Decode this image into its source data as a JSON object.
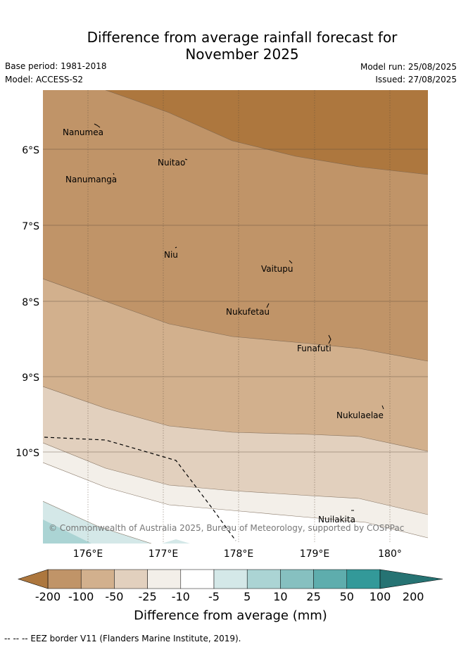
{
  "header": {
    "title_line1": "Difference from average rainfall forecast for",
    "title_line2": "November 2025",
    "base_period": "Base period: 1981-2018",
    "model": "Model: ACCESS-S2",
    "model_run": "Model run: 25/08/2025",
    "issued": "Issued: 27/08/2025"
  },
  "map": {
    "lat_labels": [
      "6°S",
      "7°S",
      "8°S",
      "9°S",
      "10°S"
    ],
    "lon_labels": [
      "176°E",
      "177°E",
      "178°E",
      "179°E",
      "180°"
    ],
    "places": [
      "Nanumea",
      "Nuitao",
      "Nanumanga",
      "Niu",
      "Vaitupu",
      "Nukufetau",
      "Funafuti",
      "Nukulaelae",
      "Nuilakita"
    ],
    "copyright": "© Commonwealth of Australia 2025, Bureau of Meteorology, supported by COSPPac"
  },
  "colorbar": {
    "ticks": [
      "-200",
      "-100",
      "-50",
      "-25",
      "-10",
      "-5",
      "5",
      "10",
      "25",
      "50",
      "100",
      "200"
    ],
    "colors": [
      "#ad773e",
      "#c09468",
      "#d2b08d",
      "#e2d0be",
      "#f3efe9",
      "#ffffff",
      "#d4e8e8",
      "#abd4d4",
      "#86c0c0",
      "#5eadad",
      "#339999",
      "#267373"
    ],
    "title": "Difference from average (mm)"
  },
  "footer": {
    "legend": "-- -- -- EEZ border V11 (Flanders Marine Institute, 2019)."
  }
}
